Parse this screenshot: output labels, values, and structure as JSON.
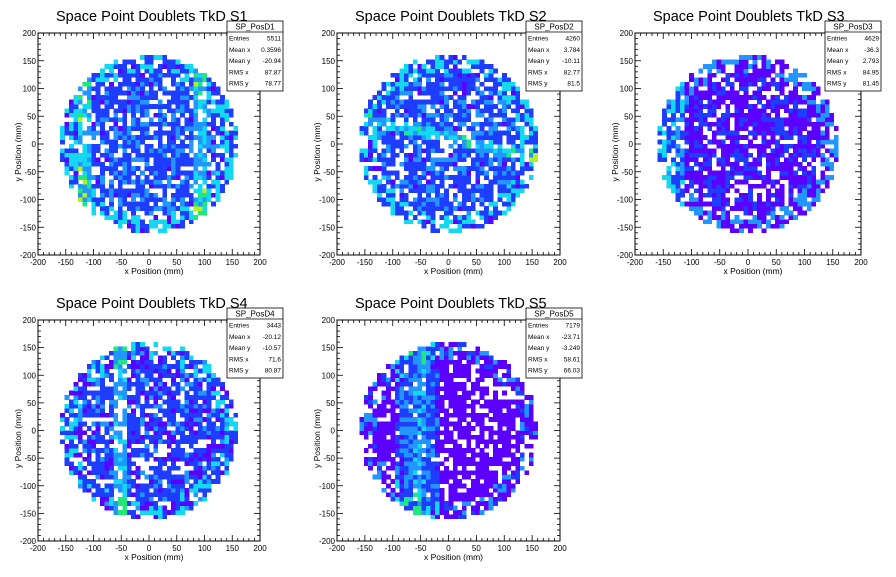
{
  "colors": {
    "frame": "#000000",
    "palette": [
      "#5b00ff",
      "#1f3dff",
      "#2196ff",
      "#13d8f0",
      "#21e87a",
      "#b8f01e",
      "#ffe400",
      "#ff2a00"
    ]
  },
  "chart_data": [
    {
      "type": "heatmap",
      "title": "Space Point Doublets TkD S1",
      "xlabel": "x Position (mm)",
      "ylabel": "y Position (mm)",
      "xlim": [
        -200,
        200
      ],
      "ylim": [
        -200,
        200
      ],
      "xticks": [
        "-200",
        "-150",
        "-100",
        "-50",
        "0",
        "50",
        "100",
        "150",
        "200"
      ],
      "yticks": [
        "-200",
        "-150",
        "-100",
        "-50",
        "0",
        "50",
        "100",
        "150",
        "200"
      ],
      "bins": 50,
      "radius_mm": 160,
      "stats": {
        "name": "SP_PosD1",
        "rows": [
          {
            "label": "Entries",
            "value": "5511"
          },
          {
            "label": "Mean x",
            "value": "0.3596"
          },
          {
            "label": "Mean y",
            "value": "-20.94"
          },
          {
            "label": "RMS x",
            "value": "87.87"
          },
          {
            "label": "RMS y",
            "value": "78.77"
          }
        ]
      }
    },
    {
      "type": "heatmap",
      "title": "Space Point Doublets TkD S2",
      "xlabel": "x Position (mm)",
      "ylabel": "y Position (mm)",
      "xlim": [
        -200,
        200
      ],
      "ylim": [
        -200,
        200
      ],
      "xticks": [
        "-200",
        "-150",
        "-100",
        "-50",
        "0",
        "50",
        "100",
        "150",
        "200"
      ],
      "yticks": [
        "-200",
        "-150",
        "-100",
        "-50",
        "0",
        "50",
        "100",
        "150",
        "200"
      ],
      "bins": 50,
      "radius_mm": 160,
      "stats": {
        "name": "SP_PosD2",
        "rows": [
          {
            "label": "Entries",
            "value": "4260"
          },
          {
            "label": "Mean x",
            "value": "3.784"
          },
          {
            "label": "Mean y",
            "value": "-10.11"
          },
          {
            "label": "RMS x",
            "value": "82.77"
          },
          {
            "label": "RMS y",
            "value": "81.5"
          }
        ]
      }
    },
    {
      "type": "heatmap",
      "title": "Space Point Doublets TkD S3",
      "xlabel": "x Position (mm)",
      "ylabel": "y Position (mm)",
      "xlim": [
        -200,
        200
      ],
      "ylim": [
        -200,
        200
      ],
      "xticks": [
        "-200",
        "-150",
        "-100",
        "-50",
        "0",
        "50",
        "100",
        "150",
        "200"
      ],
      "yticks": [
        "-200",
        "-150",
        "-100",
        "-50",
        "0",
        "50",
        "100",
        "150",
        "200"
      ],
      "bins": 50,
      "radius_mm": 160,
      "stats": {
        "name": "SP_PosD3",
        "rows": [
          {
            "label": "Entries",
            "value": "4629"
          },
          {
            "label": "Mean x",
            "value": "-36.3"
          },
          {
            "label": "Mean y",
            "value": "2.793"
          },
          {
            "label": "RMS x",
            "value": "84.95"
          },
          {
            "label": "RMS y",
            "value": "81.45"
          }
        ]
      }
    },
    {
      "type": "heatmap",
      "title": "Space Point Doublets TkD S4",
      "xlabel": "x Position (mm)",
      "ylabel": "y Position (mm)",
      "xlim": [
        -200,
        200
      ],
      "ylim": [
        -200,
        200
      ],
      "xticks": [
        "-200",
        "-150",
        "-100",
        "-50",
        "0",
        "50",
        "100",
        "150",
        "200"
      ],
      "yticks": [
        "-200",
        "-150",
        "-100",
        "-50",
        "0",
        "50",
        "100",
        "150",
        "200"
      ],
      "bins": 50,
      "radius_mm": 160,
      "stats": {
        "name": "SP_PosD4",
        "rows": [
          {
            "label": "Entries",
            "value": "3443"
          },
          {
            "label": "Mean x",
            "value": "-20.12"
          },
          {
            "label": "Mean y",
            "value": "-10.57"
          },
          {
            "label": "RMS x",
            "value": "71.6"
          },
          {
            "label": "RMS y",
            "value": "80.87"
          }
        ]
      }
    },
    {
      "type": "heatmap",
      "title": "Space Point Doublets TkD S5",
      "xlabel": "x Position (mm)",
      "ylabel": "y Position (mm)",
      "xlim": [
        -200,
        200
      ],
      "ylim": [
        -200,
        200
      ],
      "xticks": [
        "-200",
        "-150",
        "-100",
        "-50",
        "0",
        "50",
        "100",
        "150",
        "200"
      ],
      "yticks": [
        "-200",
        "-150",
        "-100",
        "-50",
        "0",
        "50",
        "100",
        "150",
        "200"
      ],
      "bins": 50,
      "radius_mm": 160,
      "stats": {
        "name": "SP_PosD5",
        "rows": [
          {
            "label": "Entries",
            "value": "7179"
          },
          {
            "label": "Mean x",
            "value": "-23.71"
          },
          {
            "label": "Mean y",
            "value": "-3.249"
          },
          {
            "label": "RMS x",
            "value": "58.61"
          },
          {
            "label": "RMS y",
            "value": "66.03"
          }
        ]
      }
    }
  ]
}
